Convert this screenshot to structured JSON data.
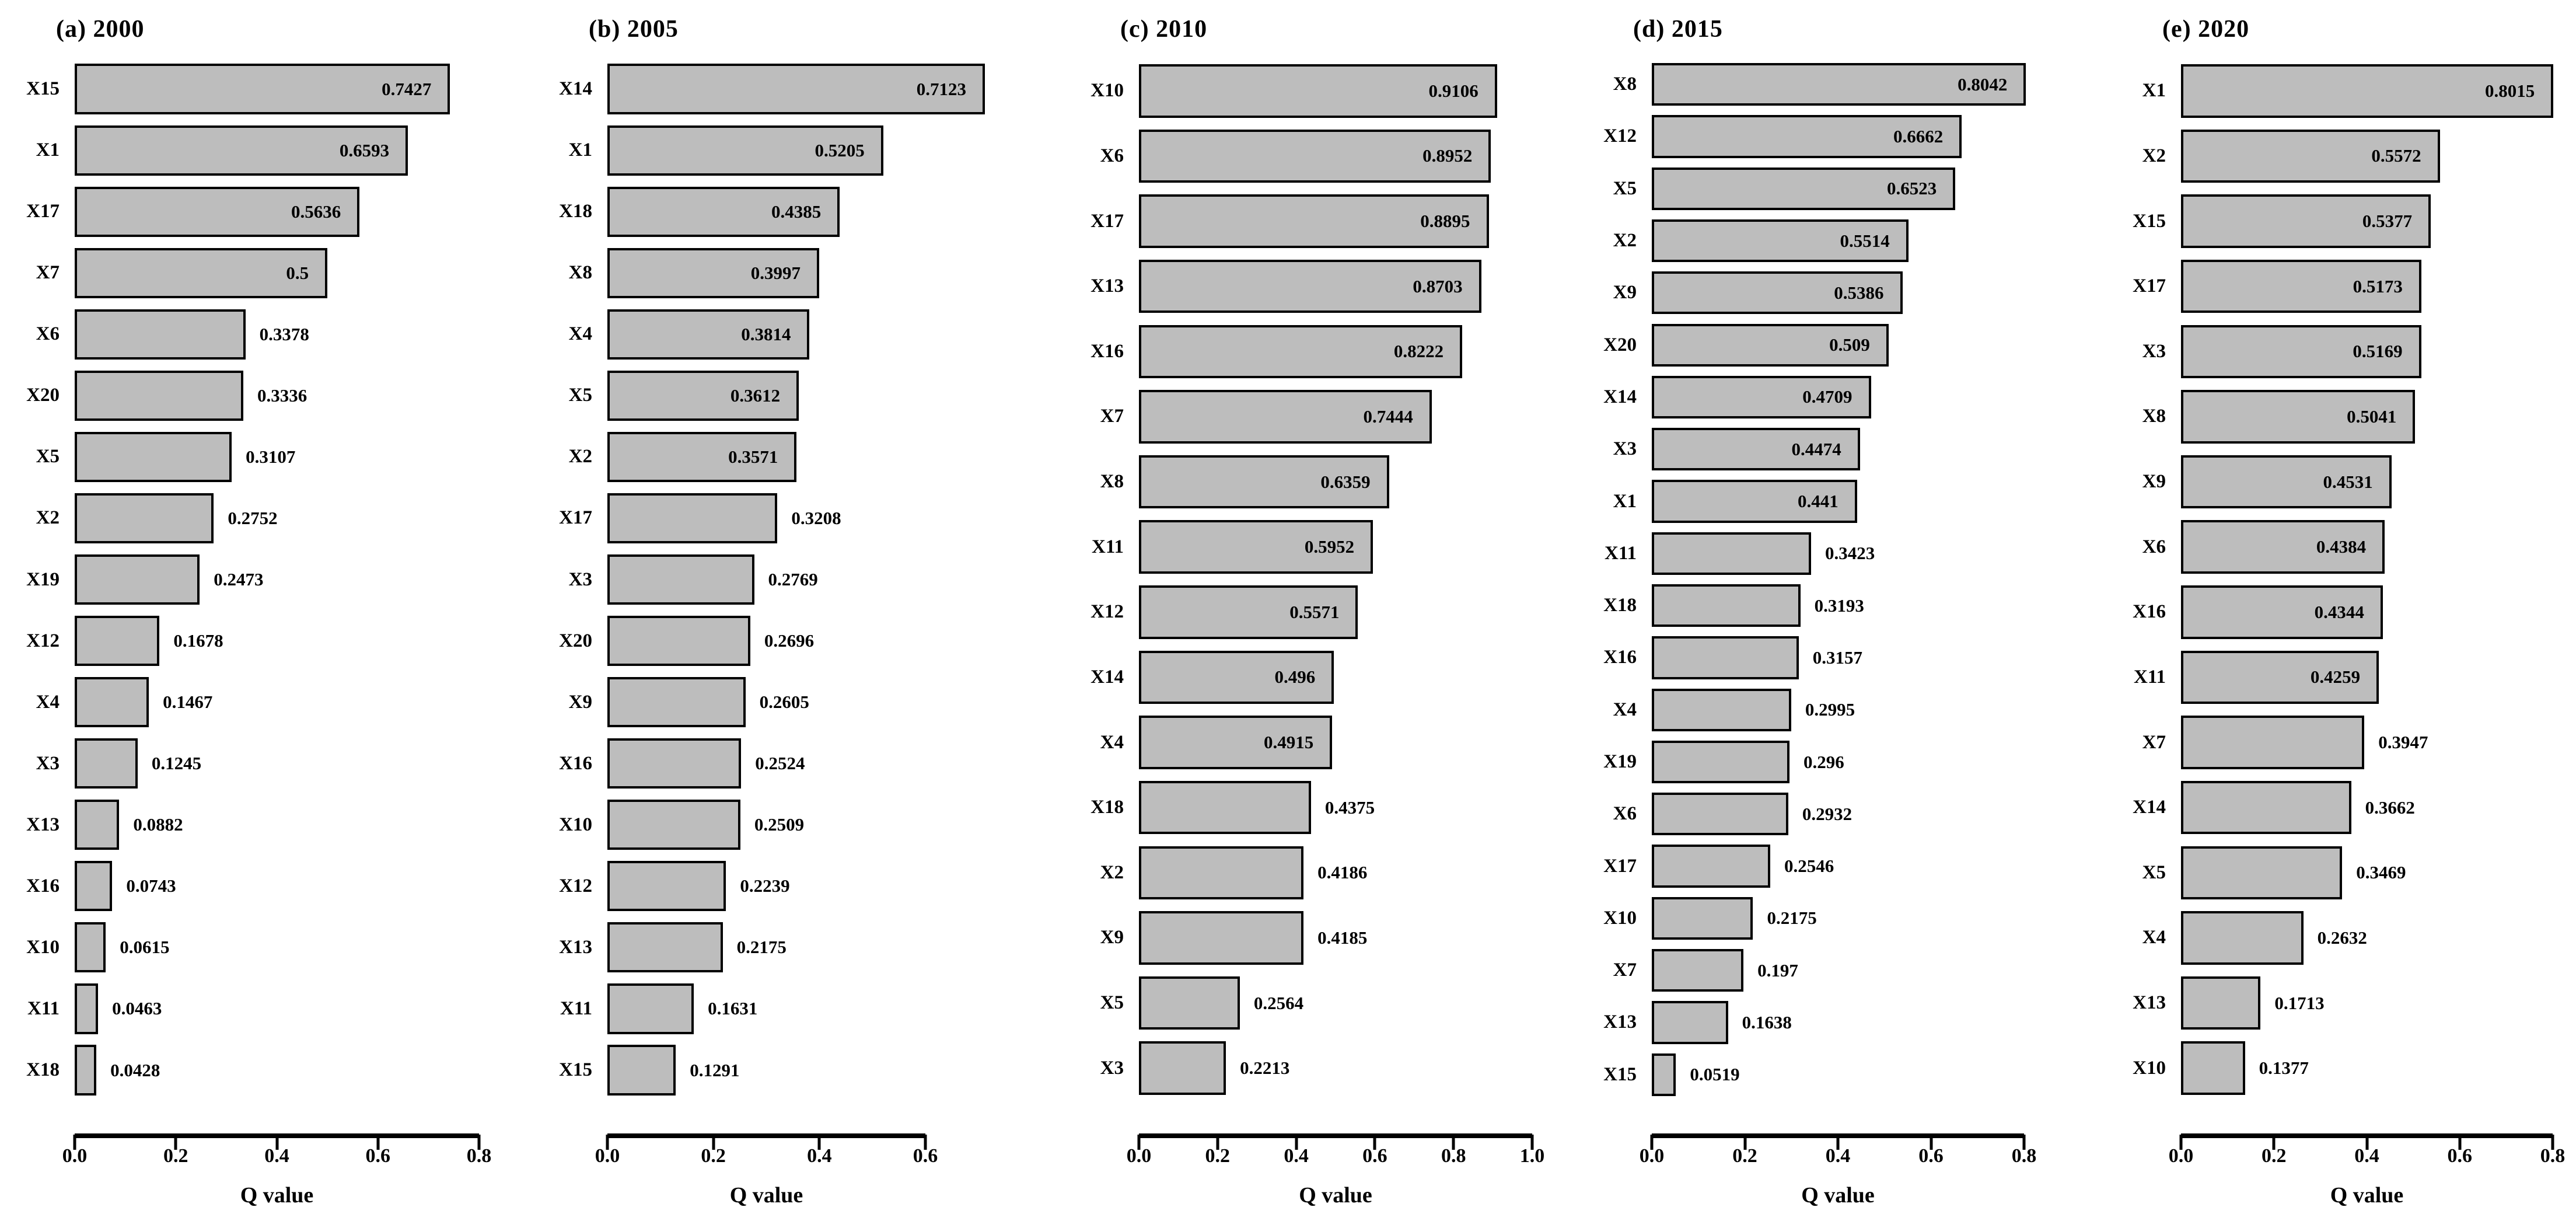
{
  "figure": {
    "xlabel": "Q value",
    "bar_fill_color": "#bdbdbd",
    "bar_border_color": "#000000",
    "text_color": "#000000"
  },
  "chart_data": [
    {
      "type": "bar",
      "orientation": "horizontal",
      "title": "(a) 2000",
      "xlabel": "Q value",
      "xlim": [
        0,
        0.8
      ],
      "ticks": [
        "0.0",
        "0.2",
        "0.4",
        "0.6",
        "0.8"
      ],
      "grid": false,
      "categories": [
        "X15",
        "X1",
        "X17",
        "X7",
        "X6",
        "X20",
        "X5",
        "X2",
        "X19",
        "X12",
        "X4",
        "X3",
        "X13",
        "X16",
        "X10",
        "X11",
        "X18"
      ],
      "values": [
        0.7427,
        0.6593,
        0.5636,
        0.5,
        0.3378,
        0.3336,
        0.3107,
        0.2752,
        0.2473,
        0.1678,
        0.1467,
        0.1245,
        0.0882,
        0.0743,
        0.0615,
        0.0463,
        0.0428
      ],
      "value_labels": [
        "0.7427",
        "0.6593",
        "0.5636",
        "0.5",
        "0.3378",
        "0.3336",
        "0.3107",
        "0.2752",
        "0.2473",
        "0.1678",
        "0.1467",
        "0.1245",
        "0.0882",
        "0.0743",
        "0.0615",
        "0.0463",
        "0.0428"
      ]
    },
    {
      "type": "bar",
      "orientation": "horizontal",
      "title": "(b) 2005",
      "xlabel": "Q value",
      "xlim": [
        0,
        0.6
      ],
      "ticks": [
        "0.0",
        "0.2",
        "0.4",
        "0.6"
      ],
      "grid": false,
      "categories": [
        "X14",
        "X1",
        "X18",
        "X8",
        "X4",
        "X5",
        "X2",
        "X17",
        "X3",
        "X20",
        "X9",
        "X16",
        "X10",
        "X12",
        "X13",
        "X11",
        "X15"
      ],
      "values": [
        0.7123,
        0.5205,
        0.4385,
        0.3997,
        0.3814,
        0.3612,
        0.3571,
        0.3208,
        0.2769,
        0.2696,
        0.2605,
        0.2524,
        0.2509,
        0.2239,
        0.2175,
        0.1631,
        0.1291
      ],
      "value_labels": [
        "0.7123",
        "0.5205",
        "0.4385",
        "0.3997",
        "0.3814",
        "0.3612",
        "0.3571",
        "0.3208",
        "0.2769",
        "0.2696",
        "0.2605",
        "0.2524",
        "0.2509",
        "0.2239",
        "0.2175",
        "0.1631",
        "0.1291"
      ]
    },
    {
      "type": "bar",
      "orientation": "horizontal",
      "title": "(c) 2010",
      "xlabel": "Q value",
      "xlim": [
        0,
        1.0
      ],
      "ticks": [
        "0.0",
        "0.2",
        "0.4",
        "0.6",
        "0.8",
        "1.0"
      ],
      "grid": false,
      "categories": [
        "X10",
        "X6",
        "X17",
        "X13",
        "X16",
        "X7",
        "X8",
        "X11",
        "X12",
        "X14",
        "X4",
        "X18",
        "X2",
        "X9",
        "X5",
        "X3"
      ],
      "values": [
        0.9106,
        0.8952,
        0.8895,
        0.8703,
        0.8222,
        0.7444,
        0.6359,
        0.5952,
        0.5571,
        0.496,
        0.4915,
        0.4375,
        0.4186,
        0.4185,
        0.2564,
        0.2213
      ],
      "value_labels": [
        "0.9106",
        "0.8952",
        "0.8895",
        "0.8703",
        "0.8222",
        "0.7444",
        "0.6359",
        "0.5952",
        "0.5571",
        "0.496",
        "0.4915",
        "0.4375",
        "0.4186",
        "0.4185",
        "0.2564",
        "0.2213"
      ]
    },
    {
      "type": "bar",
      "orientation": "horizontal",
      "title": "(d) 2015",
      "xlabel": "Q value",
      "xlim": [
        0,
        0.8
      ],
      "ticks": [
        "0.0",
        "0.2",
        "0.4",
        "0.6",
        "0.8"
      ],
      "grid": false,
      "categories": [
        "X8",
        "X12",
        "X5",
        "X2",
        "X9",
        "X20",
        "X14",
        "X3",
        "X1",
        "X11",
        "X18",
        "X16",
        "X4",
        "X19",
        "X6",
        "X17",
        "X10",
        "X7",
        "X13",
        "X15"
      ],
      "values": [
        0.8042,
        0.6662,
        0.6523,
        0.5514,
        0.5386,
        0.509,
        0.4709,
        0.4474,
        0.441,
        0.3423,
        0.3193,
        0.3157,
        0.2995,
        0.296,
        0.2932,
        0.2546,
        0.2175,
        0.197,
        0.1638,
        0.0519
      ],
      "value_labels": [
        "0.8042",
        "0.6662",
        "0.6523",
        "0.5514",
        "0.5386",
        "0.509",
        "0.4709",
        "0.4474",
        "0.441",
        "0.3423",
        "0.3193",
        "0.3157",
        "0.2995",
        "0.296",
        "0.2932",
        "0.2546",
        "0.2175",
        "0.197",
        "0.1638",
        "0.0519"
      ]
    },
    {
      "type": "bar",
      "orientation": "horizontal",
      "title": "(e) 2020",
      "xlabel": "Q value",
      "xlim": [
        0,
        0.8
      ],
      "ticks": [
        "0.0",
        "0.2",
        "0.4",
        "0.6",
        "0.8"
      ],
      "grid": false,
      "categories": [
        "X1",
        "X2",
        "X15",
        "X17",
        "X3",
        "X8",
        "X9",
        "X6",
        "X16",
        "X11",
        "X7",
        "X14",
        "X5",
        "X4",
        "X13",
        "X10"
      ],
      "values": [
        0.8015,
        0.5572,
        0.5377,
        0.5173,
        0.5169,
        0.5041,
        0.4531,
        0.4384,
        0.4344,
        0.4259,
        0.3947,
        0.3662,
        0.3469,
        0.2632,
        0.1713,
        0.1377
      ],
      "value_labels": [
        "0.8015",
        "0.5572",
        "0.5377",
        "0.5173",
        "0.5169",
        "0.5041",
        "0.4531",
        "0.4384",
        "0.4344",
        "0.4259",
        "0.3947",
        "0.3662",
        "0.3469",
        "0.2632",
        "0.1713",
        "0.1377"
      ]
    }
  ]
}
